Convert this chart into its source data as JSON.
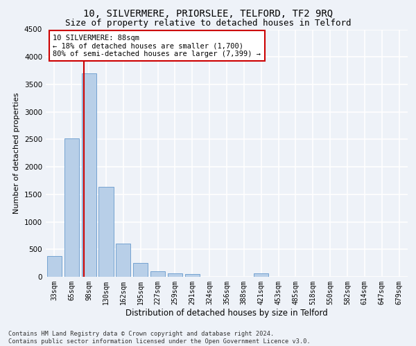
{
  "title": "10, SILVERMERE, PRIORSLEE, TELFORD, TF2 9RQ",
  "subtitle": "Size of property relative to detached houses in Telford",
  "xlabel": "Distribution of detached houses by size in Telford",
  "ylabel": "Number of detached properties",
  "categories": [
    "33sqm",
    "65sqm",
    "98sqm",
    "130sqm",
    "162sqm",
    "195sqm",
    "227sqm",
    "259sqm",
    "291sqm",
    "324sqm",
    "356sqm",
    "388sqm",
    "421sqm",
    "453sqm",
    "485sqm",
    "518sqm",
    "550sqm",
    "582sqm",
    "614sqm",
    "647sqm",
    "679sqm"
  ],
  "values": [
    380,
    2520,
    3700,
    1640,
    600,
    250,
    100,
    60,
    50,
    0,
    0,
    0,
    60,
    0,
    0,
    0,
    0,
    0,
    0,
    0,
    0
  ],
  "bar_color": "#b8cfe8",
  "bar_edge_color": "#6699cc",
  "ylim": [
    0,
    4500
  ],
  "yticks": [
    0,
    500,
    1000,
    1500,
    2000,
    2500,
    3000,
    3500,
    4000,
    4500
  ],
  "vline_color": "#cc0000",
  "vline_pos": 1.73,
  "annotation_text": "10 SILVERMERE: 88sqm\n← 18% of detached houses are smaller (1,700)\n80% of semi-detached houses are larger (7,399) →",
  "annotation_box_color": "#ffffff",
  "annotation_box_edge_color": "#cc0000",
  "footnote": "Contains HM Land Registry data © Crown copyright and database right 2024.\nContains public sector information licensed under the Open Government Licence v3.0.",
  "background_color": "#eef2f8",
  "grid_color": "#ffffff",
  "title_fontsize": 10,
  "subtitle_fontsize": 9,
  "tick_fontsize": 7,
  "ylabel_fontsize": 8,
  "xlabel_fontsize": 8.5,
  "annot_fontsize": 7.5,
  "footnote_fontsize": 6.2
}
